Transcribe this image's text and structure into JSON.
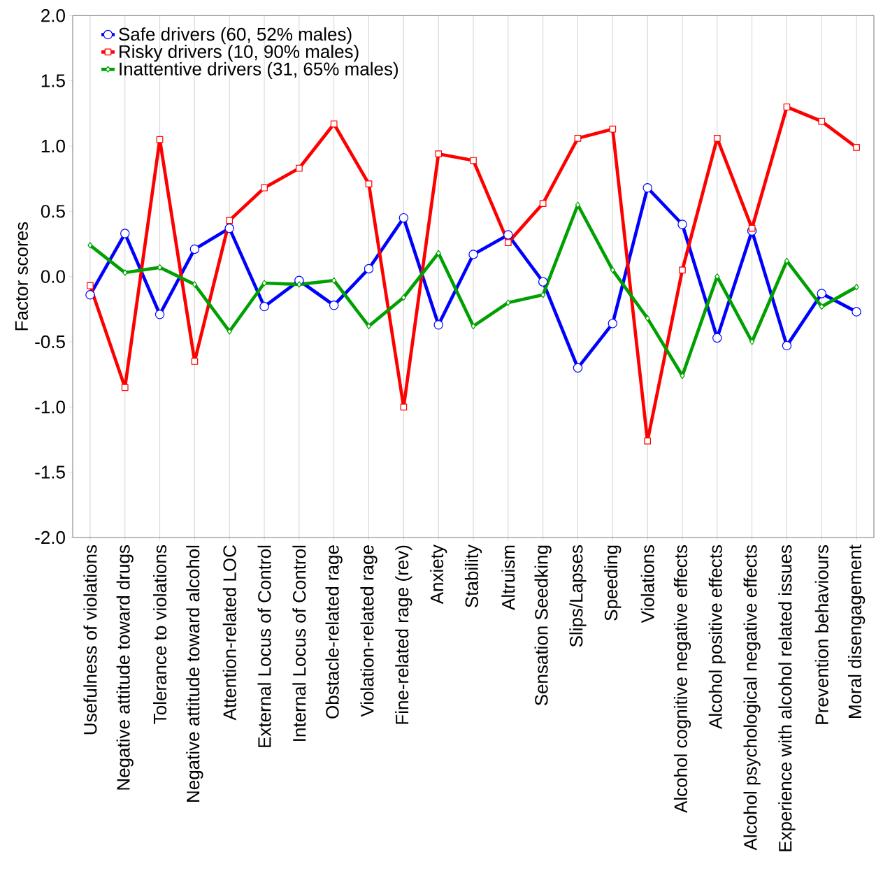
{
  "chart_data": {
    "type": "line",
    "ylabel": "Factor scores",
    "categories": [
      "Usefulness of violations",
      "Negative attitude toward drugs",
      "Tolerance to violations",
      "Negative attitude toward alcohol",
      "Attention-related LOC",
      "External Locus of Control",
      "Internal Locus of Control",
      "Obstacle-related rage",
      "Violation-related rage",
      "Fine-related rage (rev)",
      "Anxiety",
      "Stability",
      "Altruism",
      "Sensation Seedking",
      "Slips/Lapses",
      "Speeding",
      "Violations",
      "Alcohol cognitive negative effects",
      "Alcohol positive effects",
      "Alcohol psychological negative effects",
      "Experience with alcohol related issues",
      "Prevention behaviours",
      "Moral disengagement"
    ],
    "series": [
      {
        "name": "Safe drivers (60, 52% males)",
        "color": "#0000ff",
        "marker": "circle",
        "values": [
          -0.14,
          0.33,
          -0.29,
          0.21,
          0.37,
          -0.23,
          -0.03,
          -0.22,
          0.06,
          0.45,
          -0.37,
          0.17,
          0.32,
          -0.04,
          -0.7,
          -0.36,
          0.68,
          0.4,
          -0.47,
          0.35,
          -0.53,
          -0.13,
          -0.27
        ]
      },
      {
        "name": "Risky drivers (10, 90% males)",
        "color": "#ff0000",
        "marker": "square",
        "values": [
          -0.07,
          -0.85,
          1.05,
          -0.65,
          0.43,
          0.68,
          0.83,
          1.17,
          0.71,
          -1.0,
          0.94,
          0.89,
          0.26,
          0.56,
          1.06,
          1.13,
          -1.26,
          0.05,
          1.06,
          0.37,
          1.3,
          1.19,
          0.99
        ]
      },
      {
        "name": "Inattentive drivers (31, 65% males)",
        "color": "#00a000",
        "marker": "diamond",
        "values": [
          0.24,
          0.03,
          0.07,
          -0.06,
          -0.42,
          -0.05,
          -0.06,
          -0.03,
          -0.38,
          -0.16,
          0.18,
          -0.38,
          -0.2,
          -0.14,
          0.55,
          0.05,
          -0.32,
          -0.76,
          0.0,
          -0.5,
          0.12,
          -0.23,
          -0.08
        ]
      }
    ],
    "ylim": [
      -2,
      2
    ],
    "yticks": [
      {
        "value": -2,
        "label": "-2.0"
      },
      {
        "value": -1.5,
        "label": "-1.5"
      },
      {
        "value": -1,
        "label": "-1.0"
      },
      {
        "value": -0.5,
        "label": "-0.5"
      },
      {
        "value": 0,
        "label": "0.0"
      },
      {
        "value": 0.5,
        "label": "0.5"
      },
      {
        "value": 1,
        "label": "1.0"
      },
      {
        "value": 1.5,
        "label": "1.5"
      },
      {
        "value": 2,
        "label": "2.0"
      }
    ],
    "grid": "x",
    "legend": "top left",
    "line_style": "solid"
  }
}
